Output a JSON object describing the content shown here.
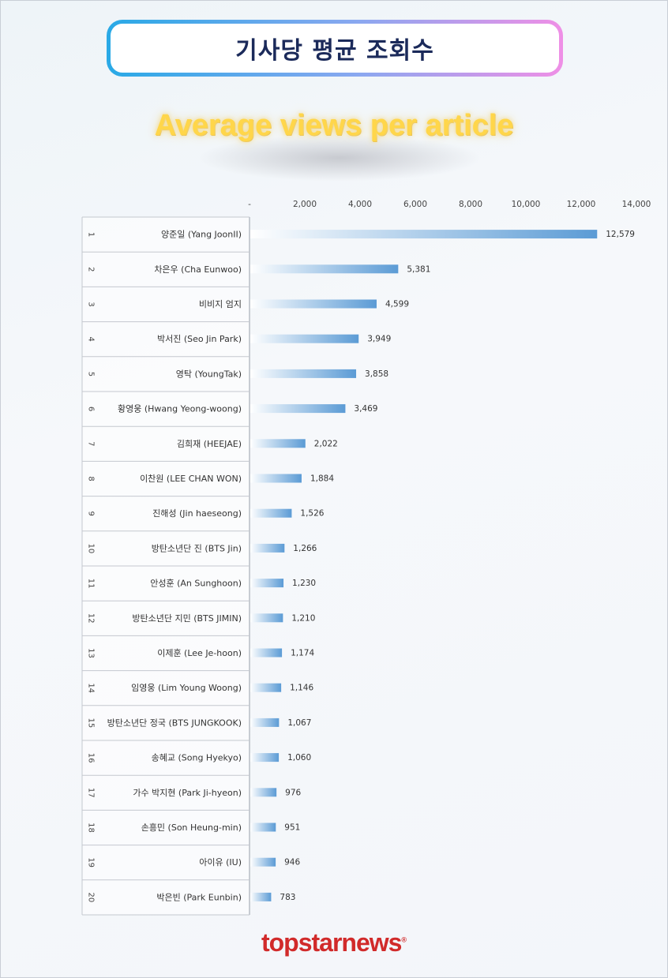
{
  "header": {
    "title_ko": "기사당 평균 조회수",
    "title_en": "Average views per article"
  },
  "colors": {
    "bar": "#5b9bd5",
    "title_text": "#1b2a5a",
    "subtitle": "#ffd64a",
    "logo": "#d12a2a"
  },
  "chart_data": {
    "type": "bar",
    "orientation": "horizontal",
    "title": "",
    "xlim": [
      0,
      14000
    ],
    "x_ticks": [
      0,
      2000,
      4000,
      6000,
      8000,
      10000,
      12000,
      14000
    ],
    "x_tick_labels": [
      "-",
      "2,000",
      "4,000",
      "6,000",
      "8,000",
      "10,000",
      "12,000",
      "14,000"
    ],
    "ranks": [
      "1",
      "2",
      "3",
      "4",
      "5",
      "6",
      "7",
      "8",
      "9",
      "10",
      "11",
      "12",
      "13",
      "14",
      "15",
      "16",
      "17",
      "18",
      "19",
      "20"
    ],
    "categories": [
      "양준일 (Yang JoonII)",
      "차은우 (Cha Eunwoo)",
      "비비지 엄지",
      "박서진 (Seo Jin Park)",
      "영탁 (YoungTak)",
      "황영웅 (Hwang Yeong-woong)",
      "김희재 (HEEJAE)",
      "이찬원 (LEE CHAN WON)",
      "진해성 (Jin haeseong)",
      "방탄소년단 진 (BTS Jin)",
      "안성훈 (An Sunghoon)",
      "방탄소년단 지민 (BTS JIMIN)",
      "이제훈 (Lee Je-hoon)",
      "임영웅 (Lim Young Woong)",
      "방탄소년단 정국 (BTS JUNGKOOK)",
      "송혜교 (Song Hyekyo)",
      "가수 박지현 (Park Ji-hyeon)",
      "손흥민 (Son Heung-min)",
      "아이유 (IU)",
      "박은빈 (Park Eunbin)"
    ],
    "values": [
      12579,
      5381,
      4599,
      3949,
      3858,
      3469,
      2022,
      1884,
      1526,
      1266,
      1230,
      1210,
      1174,
      1146,
      1067,
      1060,
      976,
      951,
      946,
      783
    ],
    "value_labels": [
      "12,579",
      "5,381",
      "4,599",
      "3,949",
      "3,858",
      "3,469",
      "2,022",
      "1,884",
      "1,526",
      "1,266",
      "1,230",
      "1,210",
      "1,174",
      "1,146",
      "1,067",
      "1,060",
      "976",
      "951",
      "946",
      "783"
    ],
    "grid": false
  },
  "footer": {
    "logo": "topstarnews",
    "logo_mark": "®"
  }
}
